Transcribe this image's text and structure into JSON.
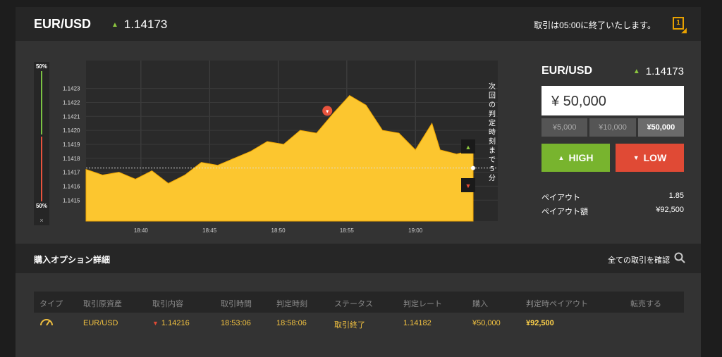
{
  "header": {
    "pair": "EUR/USD",
    "rate": "1.14173",
    "close_notice": "取引は05:00に終了いたします。",
    "notice_badge": "1"
  },
  "chart": {
    "scale_top": "50%",
    "scale_bottom": "50%",
    "scale_close": "×",
    "countdown_text": "次回の判定時刻まで5分"
  },
  "chart_data": {
    "type": "area",
    "x_ticks": [
      "18:40",
      "18:45",
      "18:50",
      "18:55",
      "19:00"
    ],
    "y_ticks": [
      "1.1423",
      "1.1422",
      "1.1421",
      "1.1420",
      "1.1419",
      "1.1418",
      "1.1417",
      "1.1416",
      "1.1415"
    ],
    "ylim": [
      1.14135,
      1.1425
    ],
    "x_range_minutes": [
      18.6,
      19.1
    ],
    "current_rate_line": 1.14173,
    "series": [
      {
        "values": [
          [
            18.6,
            1.14172
          ],
          [
            18.62,
            1.14168
          ],
          [
            18.64,
            1.1417
          ],
          [
            18.66,
            1.14165
          ],
          [
            18.68,
            1.14171
          ],
          [
            18.7,
            1.14162
          ],
          [
            18.72,
            1.14168
          ],
          [
            18.74,
            1.14177
          ],
          [
            18.76,
            1.14175
          ],
          [
            18.78,
            1.1418
          ],
          [
            18.8,
            1.14185
          ],
          [
            18.82,
            1.14192
          ],
          [
            18.84,
            1.1419
          ],
          [
            18.86,
            1.142
          ],
          [
            18.88,
            1.14198
          ],
          [
            18.9,
            1.14212
          ],
          [
            18.92,
            1.14225
          ],
          [
            18.94,
            1.14218
          ],
          [
            18.96,
            1.142
          ],
          [
            18.98,
            1.14198
          ],
          [
            19.0,
            1.14186
          ],
          [
            19.02,
            1.14205
          ],
          [
            19.03,
            1.14186
          ],
          [
            19.05,
            1.14183
          ],
          [
            19.07,
            1.14186
          ]
        ]
      }
    ],
    "entry_marker": {
      "x": 18.893,
      "y": 1.14214
    }
  },
  "order": {
    "pair": "EUR/USD",
    "rate": "1.14173",
    "amount": "¥ 50,000",
    "quick_amounts": [
      "¥5,000",
      "¥10,000",
      "¥50,000"
    ],
    "active_quick": 2,
    "high_label": "HIGH",
    "low_label": "LOW",
    "payout_label": "ペイアウト",
    "payout_value": "1.85",
    "payout_amount_label": "ペイアウト額",
    "payout_amount_value": "¥92,500"
  },
  "details": {
    "title": "購入オプション詳細",
    "all_trades_link": "全ての取引を確認",
    "columns": [
      "タイプ",
      "取引原資産",
      "取引内容",
      "取引時間",
      "判定時刻",
      "ステータス",
      "判定レート",
      "購入",
      "判定時ペイアウト",
      "転売する"
    ],
    "row": {
      "asset": "EUR/USD",
      "content": "1.14216",
      "trade_time": "18:53:06",
      "judge_time": "18:58:06",
      "status": "取引終了",
      "judge_rate": "1.14182",
      "purchase": "¥50,000",
      "payout": "¥92,500",
      "resell": ""
    }
  },
  "colors": {
    "accent_yellow": "#fcc62f",
    "high_green": "#78b42e",
    "low_red": "#e04a35",
    "gold_text": "#f0c040"
  }
}
